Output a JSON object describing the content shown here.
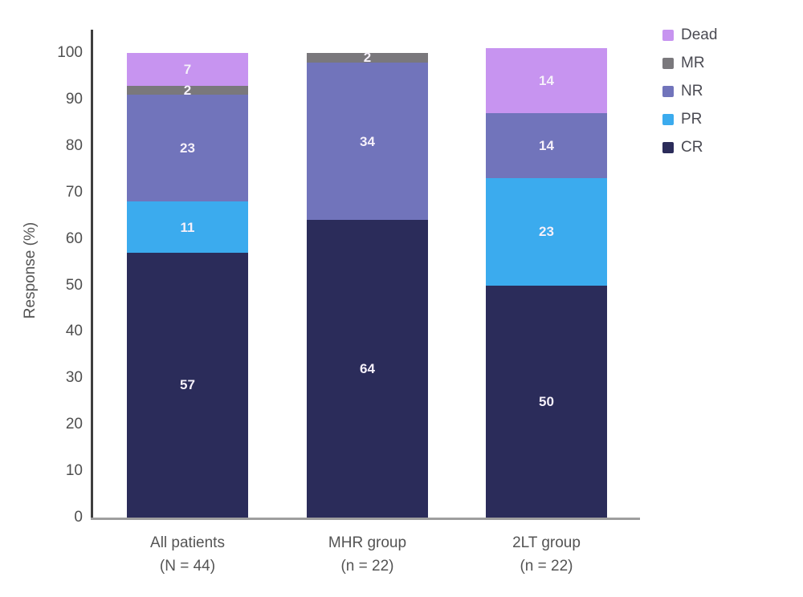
{
  "chart_data": {
    "type": "bar",
    "stacked": true,
    "title": "",
    "xlabel": "",
    "ylabel": "Response (%)",
    "ylim": [
      0,
      100
    ],
    "yticks": [
      0,
      10,
      20,
      30,
      40,
      50,
      60,
      70,
      80,
      90,
      100
    ],
    "grid": false,
    "legend_position": "top-right",
    "categories": [
      "All patients",
      "MHR group",
      "2LT group"
    ],
    "category_sublabels": [
      "(N = 44)",
      "(n = 22)",
      "(n = 22)"
    ],
    "series": [
      {
        "name": "CR",
        "color": "#2b2c5a",
        "values": [
          57,
          64,
          50
        ]
      },
      {
        "name": "PR",
        "color": "#3babee",
        "values": [
          11,
          0,
          23
        ]
      },
      {
        "name": "NR",
        "color": "#7174bb",
        "values": [
          23,
          34,
          14
        ]
      },
      {
        "name": "MR",
        "color": "#7a787c",
        "values": [
          2,
          2,
          0
        ]
      },
      {
        "name": "Dead",
        "color": "#c794f0",
        "values": [
          7,
          0,
          14
        ]
      }
    ],
    "legend": [
      {
        "label": "Dead",
        "color": "#c794f0"
      },
      {
        "label": "MR",
        "color": "#7a787c"
      },
      {
        "label": "NR",
        "color": "#7174bb"
      },
      {
        "label": "PR",
        "color": "#3babee"
      },
      {
        "label": "CR",
        "color": "#2b2c5a"
      }
    ]
  },
  "colors": {
    "axis_y": "#3f3f3f",
    "axis_x": "#9e9e9e",
    "tick_text": "#4f4f4f",
    "category_text": "#545454",
    "legend_text": "#4a4a52",
    "value_label_text": "#f6f1fb",
    "background": "#ffffff"
  }
}
